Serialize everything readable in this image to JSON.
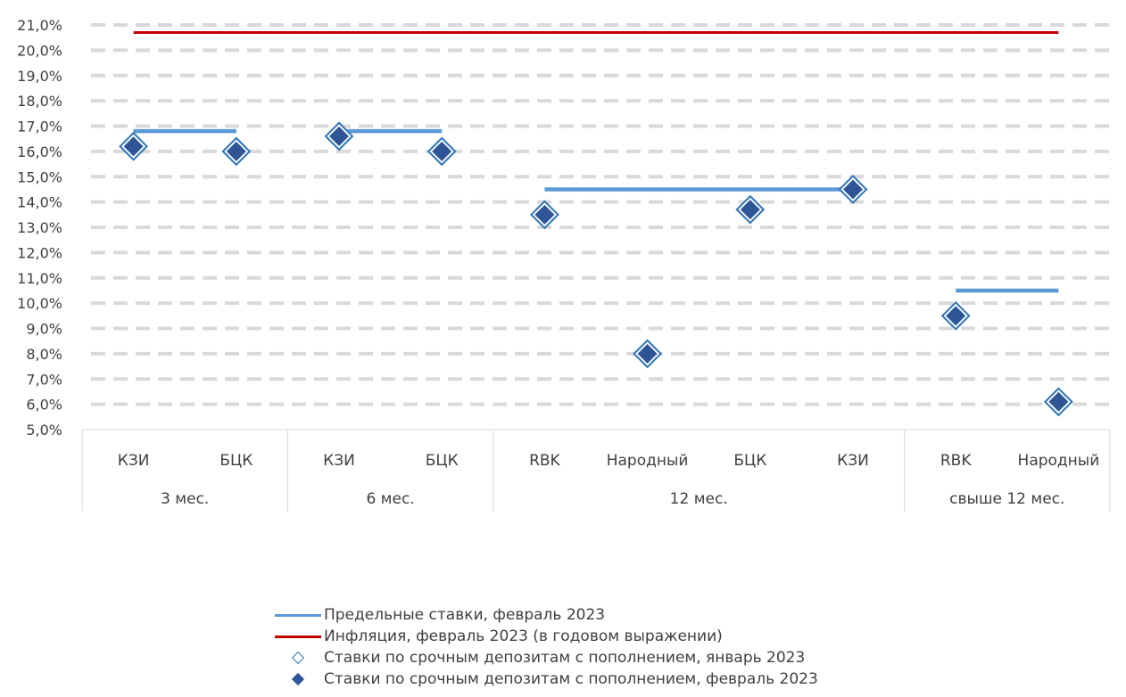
{
  "chart_data": {
    "type": "scatter",
    "ylim": [
      5.0,
      21.0
    ],
    "ytick_step": 1.0,
    "ytick_labels": [
      "5,0%",
      "6,0%",
      "7,0%",
      "8,0%",
      "9,0%",
      "10,0%",
      "11,0%",
      "12,0%",
      "13,0%",
      "14,0%",
      "15,0%",
      "16,0%",
      "17,0%",
      "18,0%",
      "19,0%",
      "20,0%",
      "21,0%"
    ],
    "grid": true,
    "legend_position": "bottom",
    "categories": [
      "КЗИ",
      "БЦК",
      "КЗИ",
      "БЦК",
      "RBK",
      "Народный",
      "БЦК",
      "КЗИ",
      "RBK",
      "Народный"
    ],
    "groups": [
      {
        "label": "3 мес.",
        "start": 0,
        "end": 1
      },
      {
        "label": "6 мес.",
        "start": 2,
        "end": 3
      },
      {
        "label": "12 мес.",
        "start": 4,
        "end": 7
      },
      {
        "label": "свыше 12 мес.",
        "start": 8,
        "end": 9
      }
    ],
    "series": [
      {
        "name": "Предельные ставки, февраль 2023",
        "kind": "group-line",
        "color": "#5b9bd5",
        "values_by_group": [
          16.8,
          16.8,
          14.5,
          10.5
        ]
      },
      {
        "name": "Инфляция, февраль 2023 (в годовом выражении)",
        "kind": "line",
        "color": "#c00000",
        "value": 20.7
      },
      {
        "name": "Ставки по срочным депозитам с пополнением, январь 2023",
        "kind": "marker-hollow",
        "color": "#2e75b6",
        "values": [
          16.2,
          16.0,
          16.6,
          16.0,
          13.5,
          8.0,
          13.7,
          14.5,
          9.5,
          6.1
        ]
      },
      {
        "name": "Ставки по срочным депозитам с пополнением, февраль 2023",
        "kind": "marker-filled",
        "color": "#2f5597",
        "values": [
          16.2,
          16.0,
          16.6,
          16.0,
          13.5,
          8.0,
          13.7,
          14.5,
          9.5,
          6.1
        ]
      }
    ]
  },
  "legend": {
    "items": [
      {
        "label": "Предельные ставки, февраль 2023",
        "kind": "line",
        "color": "#5b9bd5"
      },
      {
        "label": "Инфляция, февраль 2023 (в годовом выражении)",
        "kind": "line",
        "color": "#c00000"
      },
      {
        "label": "Ставки по срочным депозитам с пополнением, январь 2023",
        "kind": "hollow",
        "color": "#2e75b6"
      },
      {
        "label": "Ставки по срочным депозитам с пополнением, февраль 2023",
        "kind": "filled",
        "color": "#2f5597"
      }
    ]
  }
}
